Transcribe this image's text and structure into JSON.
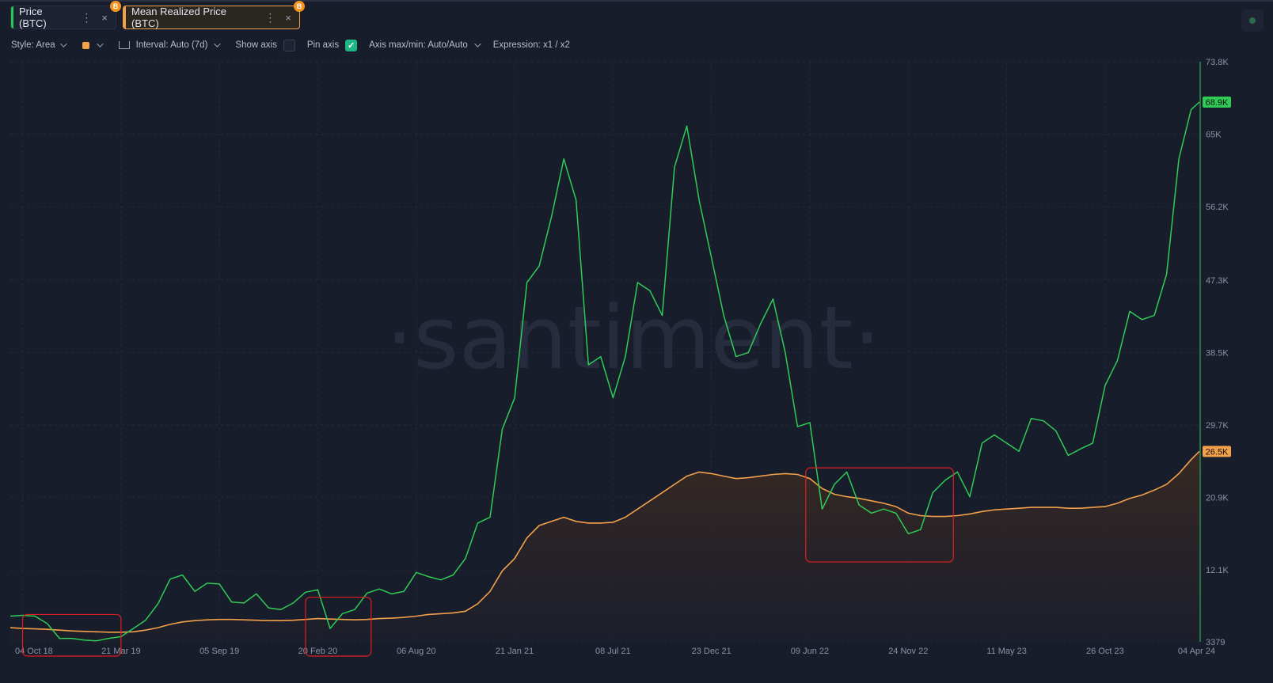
{
  "tabs": [
    {
      "label": "Price (BTC)",
      "accent": "#26c953",
      "badge": "B"
    },
    {
      "label": "Mean Realized Price (BTC)",
      "accent": "#f2a04a",
      "badge": "B"
    }
  ],
  "tab_menu_glyph": "⋮",
  "tab_close_glyph": "×",
  "toolbar": {
    "style_label": "Style: Area",
    "interval_label": "Interval: Auto (7d)",
    "show_axis_label": "Show axis",
    "pin_axis_label": "Pin axis",
    "pin_axis_check": "✓",
    "axis_minmax_label": "Axis max/min: Auto/Auto",
    "expression_label": "Expression: x1 / x2"
  },
  "colors": {
    "background": "#181d2c",
    "price": "#2ecc55",
    "realized": "#f2a04a",
    "highlight": "#e01e1e"
  },
  "chart_data": {
    "type": "line",
    "watermark": "·santiment·",
    "x": [
      "2018-09-13",
      "2018-10-04",
      "2018-10-25",
      "2018-11-15",
      "2018-12-06",
      "2018-12-27",
      "2019-01-17",
      "2019-02-07",
      "2019-02-28",
      "2019-03-21",
      "2019-04-11",
      "2019-05-02",
      "2019-05-23",
      "2019-06-13",
      "2019-07-04",
      "2019-07-25",
      "2019-08-15",
      "2019-09-05",
      "2019-09-26",
      "2019-10-17",
      "2019-11-07",
      "2019-11-28",
      "2019-12-19",
      "2020-01-09",
      "2020-01-30",
      "2020-02-20",
      "2020-03-12",
      "2020-04-02",
      "2020-04-23",
      "2020-05-14",
      "2020-06-04",
      "2020-06-25",
      "2020-07-16",
      "2020-08-06",
      "2020-08-27",
      "2020-09-17",
      "2020-10-08",
      "2020-10-29",
      "2020-11-19",
      "2020-12-10",
      "2020-12-31",
      "2021-01-21",
      "2021-02-11",
      "2021-03-04",
      "2021-03-25",
      "2021-04-15",
      "2021-05-06",
      "2021-05-27",
      "2021-06-17",
      "2021-07-08",
      "2021-07-29",
      "2021-08-19",
      "2021-09-09",
      "2021-09-30",
      "2021-10-21",
      "2021-11-11",
      "2021-12-02",
      "2021-12-23",
      "2022-01-13",
      "2022-02-03",
      "2022-02-24",
      "2022-03-17",
      "2022-04-07",
      "2022-04-28",
      "2022-05-19",
      "2022-06-09",
      "2022-06-30",
      "2022-07-21",
      "2022-08-11",
      "2022-09-01",
      "2022-09-22",
      "2022-10-13",
      "2022-11-03",
      "2022-11-24",
      "2022-12-15",
      "2023-01-05",
      "2023-01-26",
      "2023-02-16",
      "2023-03-09",
      "2023-03-30",
      "2023-04-20",
      "2023-05-11",
      "2023-06-01",
      "2023-06-22",
      "2023-07-13",
      "2023-08-03",
      "2023-08-24",
      "2023-09-14",
      "2023-10-05",
      "2023-10-26",
      "2023-11-16",
      "2023-12-07",
      "2023-12-28",
      "2024-01-18",
      "2024-02-08",
      "2024-02-29",
      "2024-03-21",
      "2024-04-04"
    ],
    "series": [
      {
        "name": "Price (BTC)",
        "values": [
          6500,
          6600,
          6500,
          5600,
          3800,
          3800,
          3600,
          3500,
          3800,
          4000,
          5000,
          6000,
          8000,
          11000,
          11500,
          9500,
          10500,
          10400,
          8200,
          8100,
          9200,
          7500,
          7300,
          8100,
          9400,
          9700,
          5000,
          6800,
          7300,
          9300,
          9800,
          9200,
          9500,
          11800,
          11300,
          10900,
          11500,
          13500,
          17800,
          18500,
          29200,
          33000,
          47000,
          49000,
          55000,
          62000,
          57000,
          37000,
          38000,
          33000,
          38000,
          47000,
          46000,
          43000,
          61000,
          66000,
          57000,
          50000,
          43000,
          38000,
          38500,
          42000,
          45000,
          38500,
          29500,
          30000,
          19500,
          22500,
          24000,
          20000,
          19000,
          19500,
          19000,
          16500,
          17000,
          21500,
          23000,
          24000,
          21000,
          27500,
          28500,
          27500,
          26500,
          30500,
          30200,
          29000,
          26000,
          26800,
          27500,
          34500,
          37500,
          43500,
          42500,
          43000,
          48000,
          62000,
          68000,
          68900
        ]
      },
      {
        "name": "Mean Realized Price (BTC)",
        "values": [
          5100,
          5000,
          4950,
          4900,
          4800,
          4700,
          4650,
          4600,
          4550,
          4550,
          4600,
          4800,
          5100,
          5500,
          5800,
          5950,
          6050,
          6100,
          6100,
          6050,
          6000,
          5950,
          5950,
          6000,
          6100,
          6200,
          6150,
          6100,
          6050,
          6100,
          6200,
          6250,
          6350,
          6500,
          6700,
          6800,
          6900,
          7100,
          8000,
          9500,
          12000,
          13500,
          16000,
          17500,
          18000,
          18500,
          18000,
          17800,
          17800,
          17900,
          18500,
          19500,
          20500,
          21500,
          22500,
          23500,
          24000,
          23800,
          23500,
          23200,
          23300,
          23500,
          23700,
          23800,
          23700,
          23200,
          22000,
          21300,
          21000,
          20800,
          20500,
          20200,
          19800,
          19000,
          18700,
          18600,
          18600,
          18700,
          18900,
          19200,
          19400,
          19500,
          19600,
          19700,
          19700,
          19700,
          19600,
          19600,
          19700,
          19800,
          20200,
          20800,
          21200,
          21800,
          22500,
          23800,
          25500,
          26500
        ]
      }
    ],
    "x_ticks": [
      "04 Oct 18",
      "21 Mar 19",
      "05 Sep 19",
      "20 Feb 20",
      "06 Aug 20",
      "21 Jan 21",
      "08 Jul 21",
      "23 Dec 21",
      "09 Jun 22",
      "24 Nov 22",
      "11 May 23",
      "26 Oct 23",
      "04 Apr 24"
    ],
    "y_ticks": [
      "73.8K",
      "65K",
      "56.2K",
      "47.3K",
      "38.5K",
      "29.7K",
      "20.9K",
      "12.1K",
      "3379"
    ],
    "ylim": [
      3379,
      73800
    ],
    "last_value_labels": [
      {
        "series": "Price (BTC)",
        "text": "68.9K",
        "value": 68900
      },
      {
        "series": "Mean Realized Price (BTC)",
        "text": "26.5K",
        "value": 26500
      }
    ],
    "grid": true,
    "legend": "top-left",
    "highlight_ranges": [
      {
        "from": "2018-10-04",
        "to": "2019-03-21",
        "y_min": 3379,
        "y_max": 6700
      },
      {
        "from": "2020-01-30",
        "to": "2020-05-21",
        "y_min": 3379,
        "y_max": 8800
      },
      {
        "from": "2022-06-02",
        "to": "2023-02-09",
        "y_min": 15000,
        "y_max": 24500
      }
    ]
  }
}
